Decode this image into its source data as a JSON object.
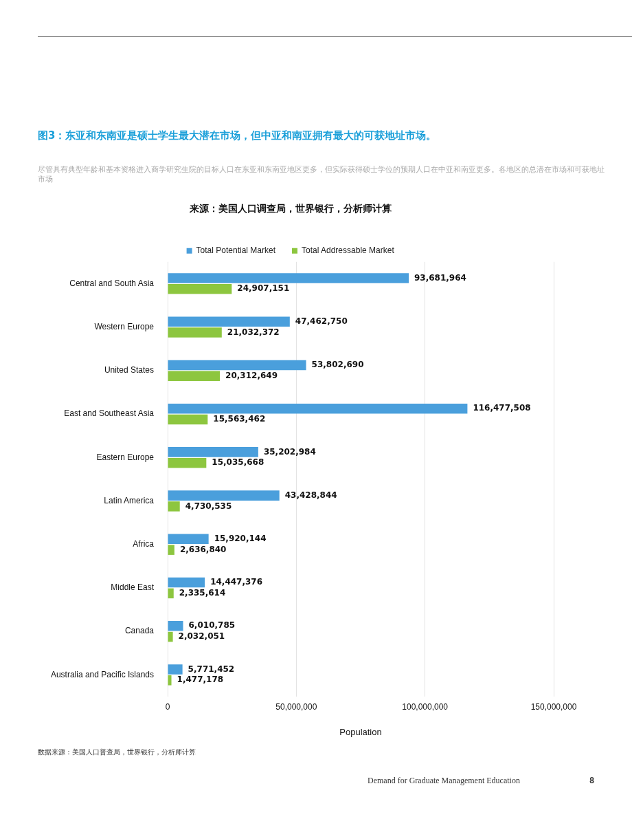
{
  "chart_data": {
    "type": "bar",
    "orientation": "horizontal",
    "title": "图3：东亚和东南亚是硕士学生最大潜在市场，但中亚和南亚拥有最大的可获地址市场。",
    "subtitle": "尽管具有典型年龄和基本资格进入商学研究生院的目标人口在东亚和东南亚地区更多，但实际获得硕士学位的预期人口在中亚和南亚更多。各地区的总潜在市场和可获地址市场",
    "legend_title": "来源：美国人口调查局，世界银行，分析师计算",
    "xlabel": "Population",
    "categories": [
      "Central and South Asia",
      "Western Europe",
      "United States",
      "East and Southeast Asia",
      "Eastern Europe",
      "Latin America",
      "Africa",
      "Middle East",
      "Canada",
      "Australia and Pacific Islands"
    ],
    "series": [
      {
        "name": "Total Potential Market",
        "color": "#4a9fdc",
        "values": [
          93681964,
          47462750,
          53802690,
          116477508,
          35202984,
          43428844,
          15920144,
          14447376,
          6010785,
          5771452
        ],
        "value_labels": [
          "93,681,964",
          "47,462,750",
          "53,802,690",
          "116,477,508",
          "35,202,984",
          "43,428,844",
          "15,920,144",
          "14,447,376",
          "6,010,785",
          "5,771,452"
        ]
      },
      {
        "name": "Total Addressable Market",
        "color": "#8dc63f",
        "values": [
          24907151,
          21032372,
          20312649,
          15563462,
          15035668,
          4730535,
          2636840,
          2335614,
          2032051,
          1477178
        ],
        "value_labels": [
          "24,907,151",
          "21,032,372",
          "20,312,649",
          "15,563,462",
          "15,035,668",
          "4,730,535",
          "2,636,840",
          "2,335,614",
          "2,032,051",
          "1,477,178"
        ]
      }
    ],
    "xlim": [
      0,
      150000000
    ],
    "xticks": [
      0,
      {
        "value": 50000000,
        "label": "50,000,000"
      },
      {
        "value": 100000000,
        "label": "100,000,000"
      },
      {
        "value": 150000000,
        "label": "150,000,000"
      }
    ],
    "grid": "x",
    "legend": "top",
    "annotations": [
      "数据来源：美国人口普查局，世界银行，分析师计算",
      "Demand for Graduate Management Education",
      "8"
    ]
  }
}
